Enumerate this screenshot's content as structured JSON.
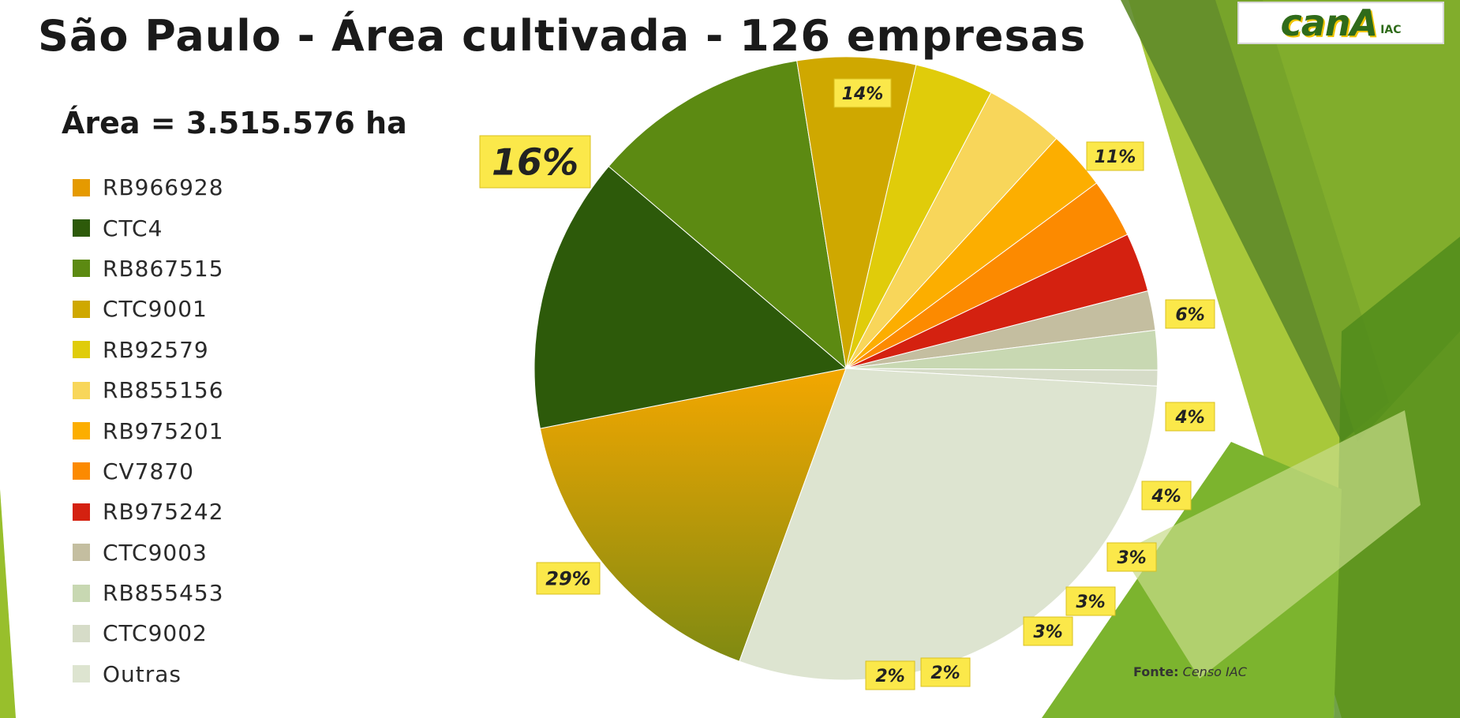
{
  "title": "São Paulo - Área cultivada - 126 empresas",
  "subtitle": "Área = 3.515.576 ha",
  "logo": {
    "main": "canA",
    "sub": "IAC"
  },
  "source": {
    "label": "Fonte:",
    "value": "Censo IAC"
  },
  "chart_data": {
    "type": "pie",
    "title": "São Paulo - Área cultivada - 126 empresas",
    "legend_position": "left",
    "slices": [
      {
        "name": "RB966928",
        "value": 16,
        "label": "16%",
        "color": "#e59a00"
      },
      {
        "name": "CTC4",
        "value": 14,
        "label": "14%",
        "color": "#2d5a0a"
      },
      {
        "name": "RB867515",
        "value": 11,
        "label": "11%",
        "color": "#5c8a12"
      },
      {
        "name": "CTC9001",
        "value": 6,
        "label": "6%",
        "color": "#cfa800"
      },
      {
        "name": "RB92579",
        "value": 4,
        "label": "4%",
        "color": "#e0cc0a"
      },
      {
        "name": "RB855156",
        "value": 4,
        "label": "4%",
        "color": "#f8d65a"
      },
      {
        "name": "RB975201",
        "value": 3,
        "label": "3%",
        "color": "#fcae00"
      },
      {
        "name": "CV7870",
        "value": 3,
        "label": "3%",
        "color": "#fc8a00"
      },
      {
        "name": "RB975242",
        "value": 3,
        "label": "3%",
        "color": "#d42110"
      },
      {
        "name": "CTC9003",
        "value": 2,
        "label": "2%",
        "color": "#c4bea0"
      },
      {
        "name": "RB855453",
        "value": 2,
        "label": "2%",
        "color": "#c8d8b2"
      },
      {
        "name": "CTC9002",
        "value": 0.8,
        "label": "",
        "color": "#d6dcc8"
      },
      {
        "name": "Outras",
        "value": 29,
        "label": "29%",
        "color": "#dde4d0"
      }
    ]
  }
}
